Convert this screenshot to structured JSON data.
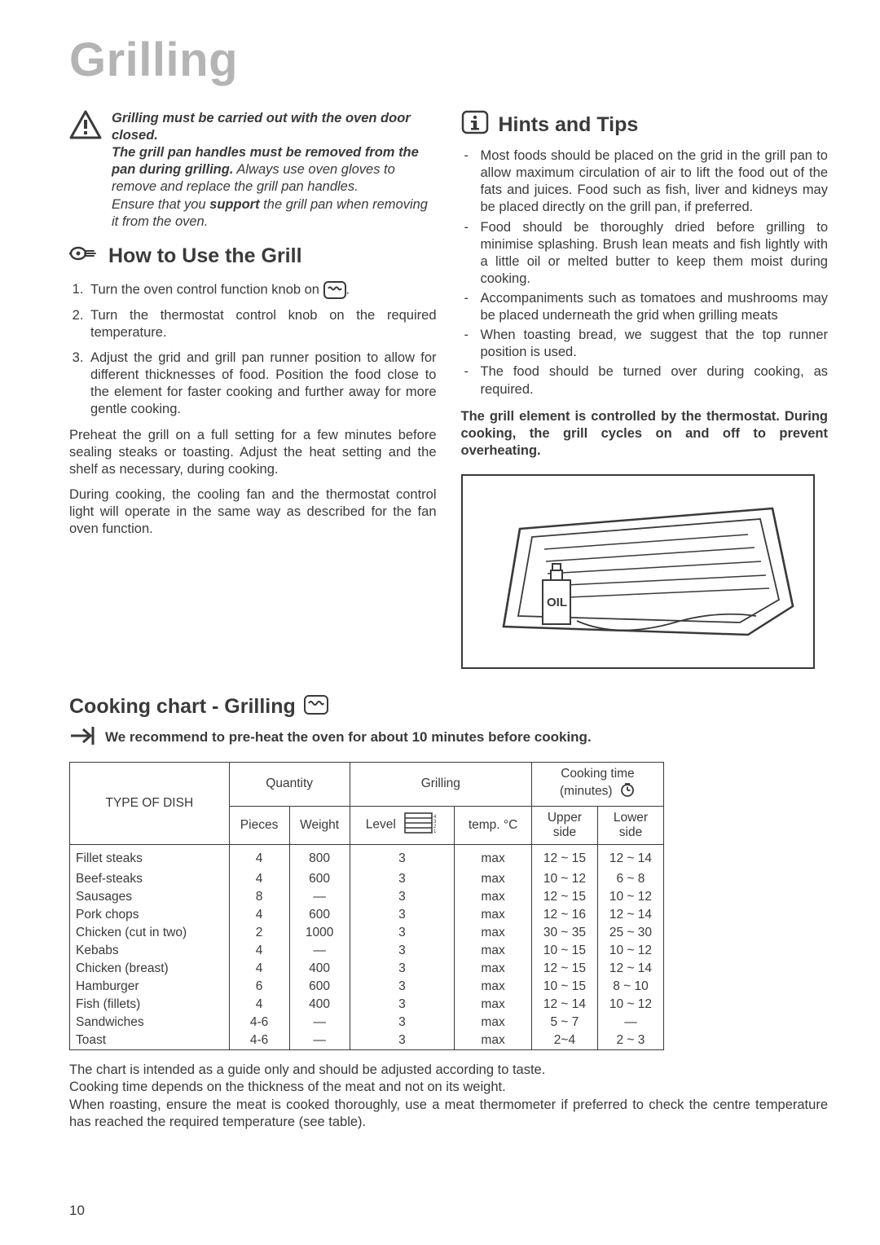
{
  "title": "Grilling",
  "warning": {
    "l1_bold": "Grilling must be carried out with the oven door closed.",
    "l2_bold": "The grill pan handles must be removed from the pan during grilling.",
    "l2_rest": " Always use oven gloves to remove and replace the grill pan handles.",
    "l3a": "Ensure that you ",
    "l3_bold": "support",
    "l3b": " the grill pan when removing it from the oven."
  },
  "howto_title": "How to Use the Grill",
  "steps": [
    "Turn the oven control function knob on ",
    "Turn the thermostat control knob on the required temperature.",
    "Adjust the grid and grill pan runner position to allow for different thicknesses of food. Position the food close to the element for faster cooking and further away for more gentle cooking."
  ],
  "step1_tail": ".",
  "para1": "Preheat the grill on a full setting  for a  few minutes before sealing steaks or toasting. Adjust the heat setting and the shelf as necessary, during cooking.",
  "para2": "During cooking, the cooling fan and the thermostat control light will operate in the same way as described for the fan oven function.",
  "hints_title": "Hints and Tips",
  "hints": [
    "Most foods should be placed on the grid in the grill pan to allow maximum circulation of air to lift the food out of the fats and juices. Food such as fish, liver and kidneys may be placed directly on the grill pan, if preferred.",
    "Food should be thoroughly dried before grilling to minimise splashing. Brush lean meats and fish lightly with a little oil or melted butter to keep them moist during cooking.",
    "Accompaniments such as tomatoes and mushrooms may be placed underneath the grid when grilling meats",
    "When toasting bread, we suggest that the top runner position is used.",
    "The food should be turned over during cooking, as required."
  ],
  "thermo_note": "The grill element is controlled by the thermostat. During cooking, the grill cycles on and off to prevent overheating.",
  "chart_title": "Cooking chart - Grilling",
  "preheat_note": "We recommend to pre-heat the oven for about 10 minutes before cooking.",
  "table": {
    "h_type": "TYPE OF DISH",
    "h_qty": "Quantity",
    "h_grill": "Grilling",
    "h_time": "Cooking time (minutes)",
    "h_pcs": "Pieces",
    "h_wt": "Weight",
    "h_lvl": "Level",
    "h_tmp": "temp. °C",
    "h_up": "Upper side",
    "h_lo": "Lower side",
    "rows": [
      {
        "dish": "Fillet steaks",
        "pcs": "4",
        "wt": "800",
        "lvl": "3",
        "tmp": "max",
        "up": "12 ~ 15",
        "lo": "12 ~ 14"
      },
      {
        "dish": "Beef-steaks",
        "pcs": "4",
        "wt": "600",
        "lvl": "3",
        "tmp": "max",
        "up": "10 ~ 12",
        "lo": "6 ~ 8"
      },
      {
        "dish": "Sausages",
        "pcs": "8",
        "wt": "—",
        "lvl": "3",
        "tmp": "max",
        "up": "12 ~ 15",
        "lo": "10 ~ 12"
      },
      {
        "dish": "Pork chops",
        "pcs": "4",
        "wt": "600",
        "lvl": "3",
        "tmp": "max",
        "up": "12 ~ 16",
        "lo": "12 ~ 14"
      },
      {
        "dish": "Chicken (cut in two)",
        "pcs": "2",
        "wt": "1000",
        "lvl": "3",
        "tmp": "max",
        "up": "30 ~ 35",
        "lo": "25 ~ 30"
      },
      {
        "dish": "Kebabs",
        "pcs": "4",
        "wt": "—",
        "lvl": "3",
        "tmp": "max",
        "up": "10 ~ 15",
        "lo": "10 ~ 12"
      },
      {
        "dish": "Chicken (breast)",
        "pcs": "4",
        "wt": "400",
        "lvl": "3",
        "tmp": "max",
        "up": "12 ~ 15",
        "lo": "12 ~ 14"
      },
      {
        "dish": "Hamburger",
        "pcs": "6",
        "wt": "600",
        "lvl": "3",
        "tmp": "max",
        "up": "10 ~ 15",
        "lo": "8 ~ 10"
      },
      {
        "dish": "Fish (fillets)",
        "pcs": "4",
        "wt": "400",
        "lvl": "3",
        "tmp": "max",
        "up": "12 ~ 14",
        "lo": "10 ~ 12"
      },
      {
        "dish": "Sandwiches",
        "pcs": "4-6",
        "wt": "—",
        "lvl": "3",
        "tmp": "max",
        "up": "5 ~ 7",
        "lo": "—"
      },
      {
        "dish": "Toast",
        "pcs": "4-6",
        "wt": "—",
        "lvl": "3",
        "tmp": "max",
        "up": "2~4",
        "lo": "2 ~ 3"
      }
    ]
  },
  "foot1": "The chart is intended as a guide only and should be adjusted according to taste.",
  "foot2": "Cooking time depends on the thickness of the meat and not on its weight.",
  "foot3": "When roasting, ensure the meat is cooked thoroughly, use a meat thermometer if preferred to check the centre temperature has reached the required temperature (see table).",
  "pagenum": "10"
}
